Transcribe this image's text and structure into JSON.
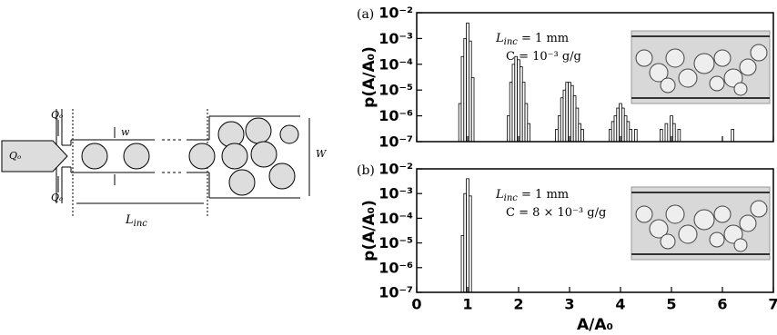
{
  "diagram": {
    "flow_labels": [
      "Qₒ",
      "Qₒ",
      "Qₒ"
    ],
    "width_small": "w",
    "width_large": "W",
    "length_label": [
      "L",
      "inc"
    ]
  },
  "chart_data": [
    {
      "type": "bar",
      "panel_label": "(a)",
      "ylabel": "p(A/A₀)",
      "yscale": "log",
      "color": "#ffffff",
      "ylim": [
        1e-07,
        0.01
      ],
      "yticks": [
        {
          "value": 1e-07,
          "label": "10⁻⁷"
        },
        {
          "value": 1e-06,
          "label": "10⁻⁶"
        },
        {
          "value": 1e-05,
          "label": "10⁻⁵"
        },
        {
          "value": 0.0001,
          "label": "10⁻⁴"
        },
        {
          "value": 0.001,
          "label": "10⁻³"
        },
        {
          "value": 0.01,
          "label": "10⁻²"
        }
      ],
      "xlim": [
        0,
        7
      ],
      "xticks": [
        0,
        1,
        2,
        3,
        4,
        5,
        6,
        7
      ],
      "xtick_labels": false,
      "annotation": [
        [
          "L",
          "inc",
          " = 1 mm"
        ],
        [
          "C = 10⁻³ g/g"
        ]
      ],
      "x": [
        0.85,
        0.9,
        0.95,
        1.0,
        1.05,
        1.1,
        1.8,
        1.85,
        1.9,
        1.95,
        2.0,
        2.05,
        2.1,
        2.15,
        2.2,
        2.75,
        2.8,
        2.85,
        2.9,
        2.95,
        3.0,
        3.05,
        3.1,
        3.15,
        3.2,
        3.25,
        3.8,
        3.85,
        3.9,
        3.95,
        4.0,
        4.05,
        4.1,
        4.15,
        4.2,
        4.3,
        4.8,
        4.9,
        5.0,
        5.05,
        5.15,
        6.2
      ],
      "values": [
        3e-06,
        0.0002,
        0.001,
        0.004,
        0.0008,
        3e-05,
        1e-06,
        2e-05,
        0.0001,
        0.0002,
        0.00015,
        8e-05,
        2e-05,
        3e-06,
        5e-07,
        3e-07,
        1e-06,
        5e-06,
        1e-05,
        2e-05,
        2e-05,
        1.5e-05,
        6e-06,
        2e-06,
        5e-07,
        3e-07,
        3e-07,
        6e-07,
        1e-06,
        2e-06,
        3e-06,
        2e-06,
        1e-06,
        6e-07,
        3e-07,
        3e-07,
        3e-07,
        5e-07,
        1e-06,
        5e-07,
        3e-07,
        3e-07
      ]
    },
    {
      "type": "bar",
      "panel_label": "(b)",
      "ylabel": "p(A/A₀)",
      "xlabel": "A/A₀",
      "yscale": "log",
      "color": "#ffffff",
      "ylim": [
        1e-07,
        0.01
      ],
      "yticks": [
        {
          "value": 1e-07,
          "label": "10⁻⁷"
        },
        {
          "value": 1e-06,
          "label": "10⁻⁶"
        },
        {
          "value": 1e-05,
          "label": "10⁻⁵"
        },
        {
          "value": 0.0001,
          "label": "10⁻⁴"
        },
        {
          "value": 0.001,
          "label": "10⁻³"
        },
        {
          "value": 0.01,
          "label": "10⁻²"
        }
      ],
      "xlim": [
        0,
        7
      ],
      "xticks": [
        0,
        1,
        2,
        3,
        4,
        5,
        6,
        7
      ],
      "xtick_labels": true,
      "annotation": [
        [
          "L",
          "inc",
          " = 1 mm"
        ],
        [
          "C = 8 × 10⁻³ g/g"
        ]
      ],
      "x": [
        0.9,
        0.95,
        1.0,
        1.05
      ],
      "values": [
        2e-05,
        0.001,
        0.004,
        0.0008
      ]
    }
  ]
}
